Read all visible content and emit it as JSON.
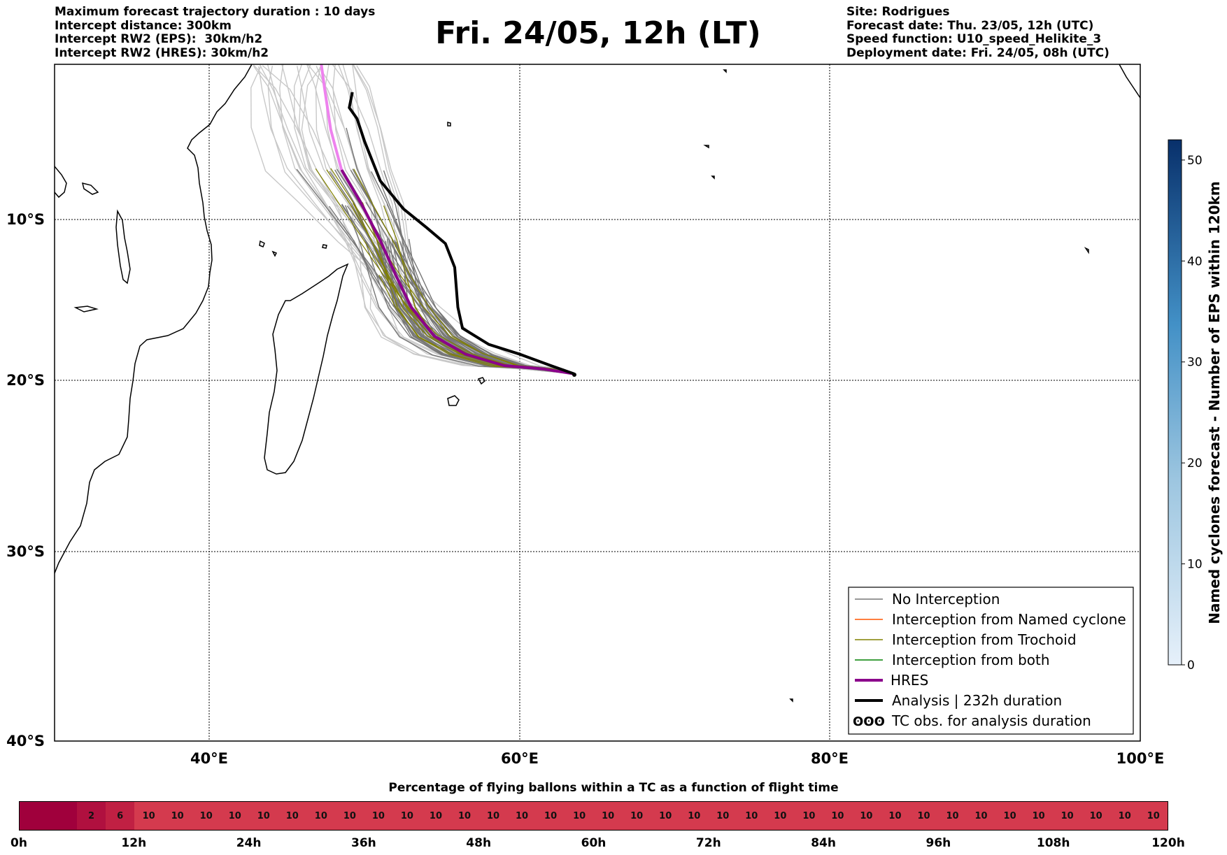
{
  "header_left": [
    "Maximum forecast trajectory duration : 10 days",
    "Intercept distance: 300km",
    "Intercept RW2 (EPS):  30km/h2",
    "Intercept RW2 (HRES): 30km/h2"
  ],
  "title": "Fri. 24/05, 12h (LT)",
  "header_right": [
    "Site: Rodrigues",
    "Forecast date: Thu. 23/05, 12h (UTC)",
    "Speed function: U10_speed_Helikite_3",
    "Deployment date: Fri. 24/05, 08h (UTC)"
  ],
  "map": {
    "lon_range": [
      30,
      100
    ],
    "lat_range": [
      0,
      -40
    ],
    "lat_labels": [
      "10°S",
      "20°S",
      "30°S",
      "40°S"
    ],
    "lon_labels": [
      "40°E",
      "60°E",
      "80°E",
      "100°E"
    ],
    "grid": "dotted"
  },
  "legend": {
    "items": [
      {
        "label": "No Interception",
        "color": "#777777",
        "style": "thin"
      },
      {
        "label": "Interception from Named cyclone",
        "color": "#ff5500",
        "style": "thin"
      },
      {
        "label": "Interception from Trochoid",
        "color": "#808000",
        "style": "thin"
      },
      {
        "label": "Interception from both",
        "color": "#008000",
        "style": "thin"
      },
      {
        "label": "HRES",
        "color": "#8b008b",
        "style": "thick"
      },
      {
        "label": "Analysis | 232h duration",
        "color": "#000000",
        "style": "thick"
      },
      {
        "label": "TC obs. for analysis duration",
        "color": "#000000",
        "style": "symbol",
        "symbol": "ʘʘʘ"
      }
    ]
  },
  "colorbar": {
    "label": "Named cyclones forecast - Number of EPS within 120km",
    "ticks": [
      "0",
      "10",
      "20",
      "30",
      "40",
      "50"
    ],
    "range": [
      0,
      52
    ],
    "color_low": "#e6f0fa",
    "color_high": "#08306b"
  },
  "timebar": {
    "title": "Percentage of flying ballons within a TC as a function of flight time",
    "segments": [
      "",
      "",
      "2",
      "6",
      "10",
      "10",
      "10",
      "10",
      "10",
      "10",
      "10",
      "10",
      "10",
      "10",
      "10",
      "10",
      "10",
      "10",
      "10",
      "10",
      "10",
      "10",
      "10",
      "10",
      "10",
      "10",
      "10",
      "10",
      "10",
      "10",
      "10",
      "10",
      "10",
      "10",
      "10",
      "10",
      "10",
      "10",
      "10",
      "10"
    ],
    "segment_colors": [
      "#a0003c",
      "#a0003c",
      "#b0103f",
      "#c02043"
    ],
    "default_color": "#d43a4e",
    "time_labels": [
      "0h",
      "12h",
      "24h",
      "36h",
      "48h",
      "60h",
      "72h",
      "84h",
      "96h",
      "108h",
      "120h"
    ]
  },
  "trajectories": {
    "start": {
      "lon": 63.5,
      "lat": -19.6
    },
    "hres": [
      [
        63.5,
        -19.6
      ],
      [
        61.5,
        -19.3
      ],
      [
        59,
        -19.1
      ],
      [
        56.5,
        -18.4
      ],
      [
        54.5,
        -17.3
      ],
      [
        53,
        -15.5
      ],
      [
        52,
        -13.5
      ],
      [
        51,
        -11.3
      ],
      [
        49.8,
        -9
      ],
      [
        48.5,
        -6.8
      ],
      [
        47.8,
        -4.2
      ],
      [
        47.4,
        -1.5
      ],
      [
        47.2,
        0
      ]
    ],
    "analysis": [
      [
        63.5,
        -19.6
      ],
      [
        62,
        -19.1
      ],
      [
        60,
        -18.4
      ],
      [
        58,
        -17.8
      ],
      [
        56.3,
        -16.8
      ],
      [
        56,
        -15.5
      ],
      [
        55.8,
        -13
      ],
      [
        55.2,
        -11.5
      ],
      [
        54,
        -10.5
      ],
      [
        52.5,
        -9.3
      ],
      [
        51,
        -7.5
      ],
      [
        50,
        -5
      ],
      [
        49.5,
        -3.5
      ],
      [
        49,
        -2.8
      ],
      [
        49.2,
        -1.8
      ]
    ]
  }
}
